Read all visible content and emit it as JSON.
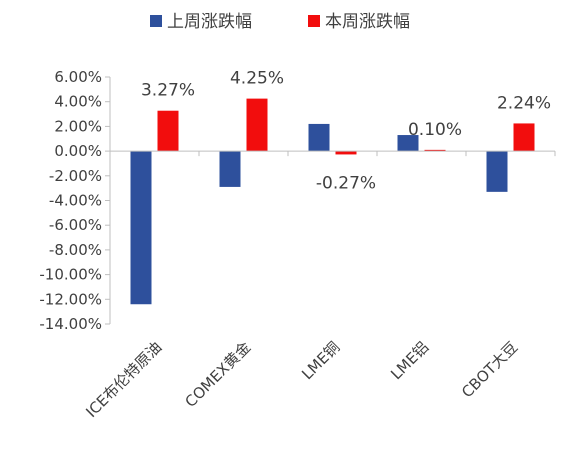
{
  "chart_data": {
    "type": "bar",
    "categories": [
      "ICE布伦特原油",
      "COMEX黄金",
      "LME铜",
      "LME铝",
      "CBOT大豆"
    ],
    "series": [
      {
        "name": "上周涨跌幅",
        "color": "#2E509C",
        "values": [
          -12.4,
          -2.9,
          2.2,
          1.3,
          -3.3
        ]
      },
      {
        "name": "本周涨跌幅",
        "color": "#F20D0D",
        "values": [
          3.27,
          4.25,
          -0.27,
          0.1,
          2.24
        ]
      }
    ],
    "data_labels": [
      "3.27%",
      "4.25%",
      "-0.27%",
      "0.10%",
      "2.24%"
    ],
    "y_ticks": [
      "6.00%",
      "4.00%",
      "2.00%",
      "0.00%",
      "-2.00%",
      "-4.00%",
      "-6.00%",
      "-8.00%",
      "-10.00%",
      "-12.00%",
      "-14.00%"
    ],
    "ylim": [
      -14,
      6
    ],
    "grid": false,
    "legend_position": "top"
  }
}
